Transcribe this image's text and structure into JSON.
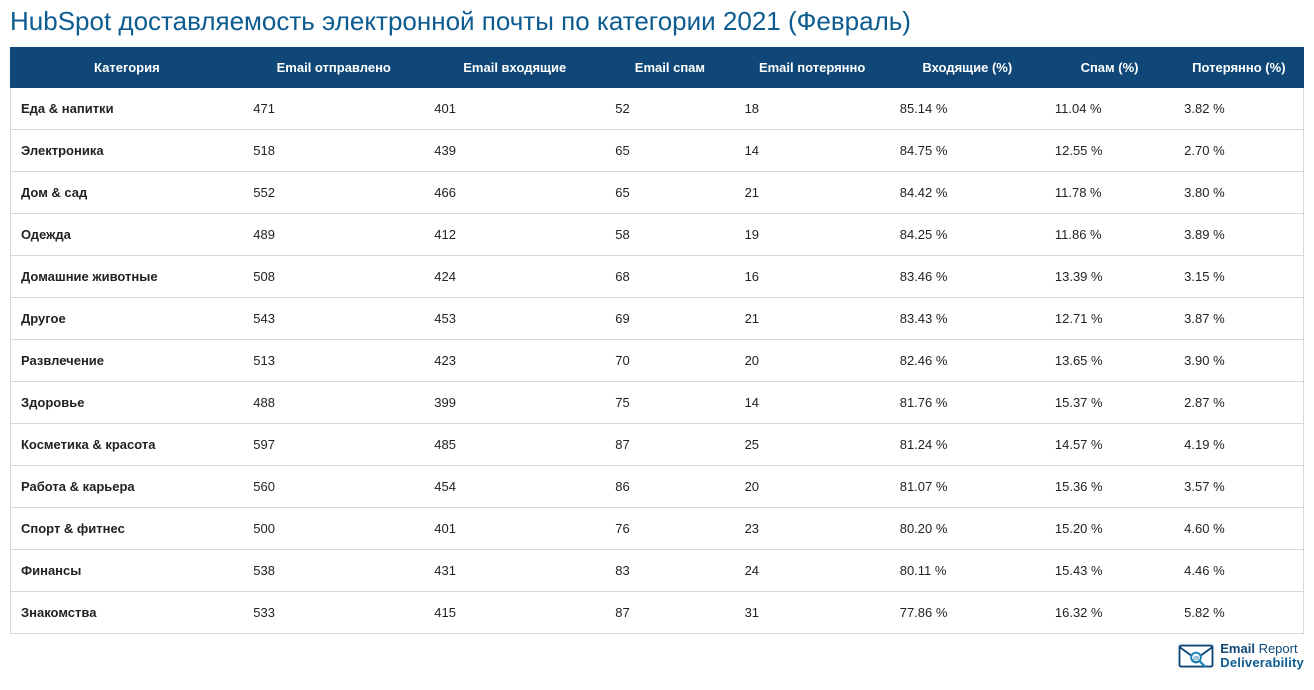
{
  "title": "HubSpot доставляемость электронной почты по категории 2021 (Февраль)",
  "colors": {
    "title": "#0d5c91",
    "header_bg": "#0f4878",
    "header_text": "#ffffff",
    "row_border": "#d9d9d9",
    "body_text": "#222222",
    "background": "#ffffff",
    "logo_primary": "#0f4878",
    "logo_accent": "#1a7fb3"
  },
  "table": {
    "columns": [
      "Категория",
      "Email отправлено",
      "Email входящие",
      "Email спам",
      "Email потерянно",
      "Входящие (%)",
      "Спам (%)",
      "Потерянно (%)"
    ],
    "column_widths_pct": [
      18,
      14,
      14,
      10,
      12,
      12,
      10,
      10
    ],
    "rows": [
      [
        "Еда & напитки",
        "471",
        "401",
        "52",
        "18",
        "85.14 %",
        "11.04 %",
        "3.82 %"
      ],
      [
        "Электроника",
        "518",
        "439",
        "65",
        "14",
        "84.75 %",
        "12.55 %",
        "2.70 %"
      ],
      [
        "Дом & сад",
        "552",
        "466",
        "65",
        "21",
        "84.42 %",
        "11.78 %",
        "3.80 %"
      ],
      [
        "Одежда",
        "489",
        "412",
        "58",
        "19",
        "84.25 %",
        "11.86 %",
        "3.89 %"
      ],
      [
        "Домашние животные",
        "508",
        "424",
        "68",
        "16",
        "83.46 %",
        "13.39 %",
        "3.15 %"
      ],
      [
        "Другое",
        "543",
        "453",
        "69",
        "21",
        "83.43 %",
        "12.71 %",
        "3.87 %"
      ],
      [
        "Развлечение",
        "513",
        "423",
        "70",
        "20",
        "82.46 %",
        "13.65 %",
        "3.90 %"
      ],
      [
        "Здоровье",
        "488",
        "399",
        "75",
        "14",
        "81.76 %",
        "15.37 %",
        "2.87 %"
      ],
      [
        "Косметика & красота",
        "597",
        "485",
        "87",
        "25",
        "81.24 %",
        "14.57 %",
        "4.19 %"
      ],
      [
        "Работа & карьера",
        "560",
        "454",
        "86",
        "20",
        "81.07 %",
        "15.36 %",
        "3.57 %"
      ],
      [
        "Спорт & фитнес",
        "500",
        "401",
        "76",
        "23",
        "80.20 %",
        "15.20 %",
        "4.60 %"
      ],
      [
        "Финансы",
        "538",
        "431",
        "83",
        "24",
        "80.11 %",
        "15.43 %",
        "4.46 %"
      ],
      [
        "Знакомства",
        "533",
        "415",
        "87",
        "31",
        "77.86 %",
        "16.32 %",
        "5.82 %"
      ]
    ]
  },
  "logo": {
    "line1_a": "Email ",
    "line1_b": "Report",
    "line2": "Deliverability"
  }
}
